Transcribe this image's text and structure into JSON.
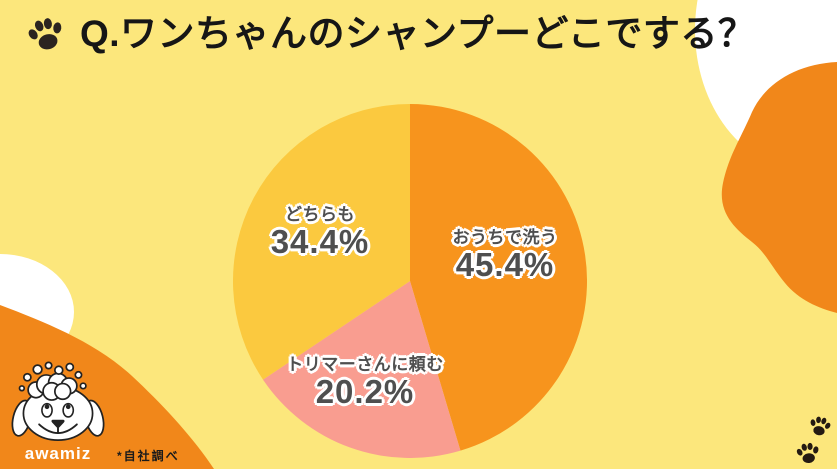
{
  "title": {
    "text": "Q.ワンちゃんのシャンプーどこでする？"
  },
  "chart_data": {
    "type": "pie",
    "title": "Q.ワンちゃんのシャンプーどこでする？",
    "start_angle_deg": 0,
    "direction": "clockwise",
    "slices": [
      {
        "label": "おうちで洗う",
        "value": 45.4,
        "display": "45.4%",
        "color": "#F7941D"
      },
      {
        "label": "トリマーさんに頼む",
        "value": 20.2,
        "display": "20.2%",
        "color": "#F99D90"
      },
      {
        "label": "どちらも",
        "value": 34.4,
        "display": "34.4%",
        "color": "#FBC93F"
      }
    ]
  },
  "footer": {
    "brand": "awamiz",
    "note": "*自社調べ"
  },
  "colors": {
    "background": "#FCE77C",
    "blob_orange": "#F1871A",
    "blob_white": "#FFFFFF",
    "label_text": "#4F4F4F",
    "title_text": "#161616"
  },
  "icons": {
    "title_icon": "paw-print-icon",
    "bottom_right_icons": [
      "paw-print-icon",
      "paw-print-icon"
    ],
    "mascot": "awamiz-dog-with-soap-bubbles"
  }
}
